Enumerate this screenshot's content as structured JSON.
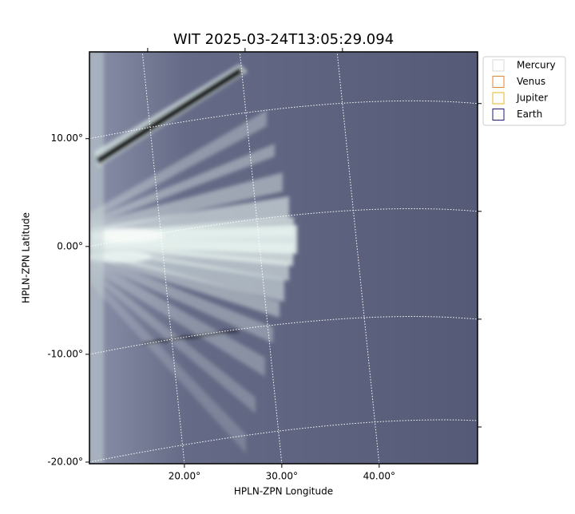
{
  "chart_data": {
    "type": "image",
    "title": "WIT 2025-03-24T13:05:29.094",
    "xlabel": "HPLN-ZPN Longitude",
    "ylabel": "HPLN-ZPN Latitude",
    "xlim": [
      10.25,
      50.1
    ],
    "ylim": [
      -20.15,
      18.05
    ],
    "xticks": [
      {
        "value": 20,
        "label": "20.00°"
      },
      {
        "value": 30,
        "label": "30.00°"
      },
      {
        "value": 40,
        "label": "40.00°"
      }
    ],
    "yticks": [
      {
        "value": 10,
        "label": "10.00°"
      },
      {
        "value": 0,
        "label": "0.00°"
      },
      {
        "value": -10,
        "label": "-10.00°"
      },
      {
        "value": -20,
        "label": "-20.00°"
      }
    ],
    "grid": true,
    "series": [
      {
        "name": "Mercury",
        "color": "#d9d9d9"
      },
      {
        "name": "Venus",
        "color": "#e0873a"
      },
      {
        "name": "Jupiter",
        "color": "#e8b321"
      },
      {
        "name": "Earth",
        "color": "#1b1b70"
      }
    ]
  }
}
